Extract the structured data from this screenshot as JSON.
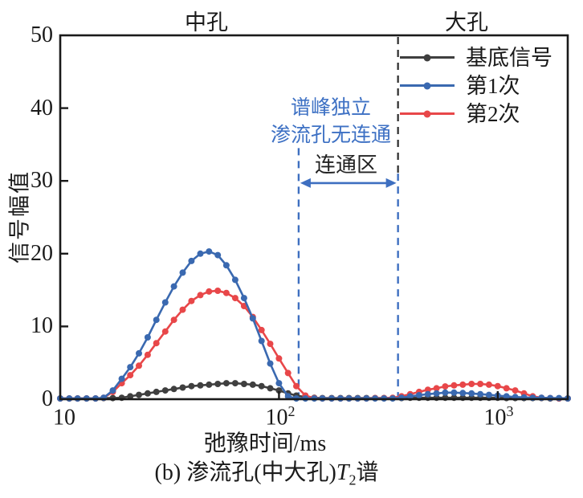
{
  "figure": {
    "caption_prefix": "(b) 渗流孔(中大孔)",
    "caption_T": "T",
    "caption_sub": "2",
    "caption_suffix": "谱"
  },
  "legend": {
    "items": [
      {
        "label": "基底信号",
        "color": "#3f3f3f"
      },
      {
        "label": "第1次",
        "color": "#3a69b0"
      },
      {
        "label": "第2次",
        "color": "#e84749"
      }
    ]
  },
  "chart_data": {
    "type": "line",
    "x_axis": {
      "label": "弛豫时间/ms",
      "scale": "log",
      "min_ms": 10,
      "max_ms": 2089,
      "ticks": [
        {
          "value": 10,
          "base": "10",
          "exp": ""
        },
        {
          "value": 100,
          "base": "10",
          "exp": "2"
        },
        {
          "value": 1000,
          "base": "10",
          "exp": "3"
        }
      ]
    },
    "y_axis": {
      "label": "信号幅值",
      "min": 0,
      "max": 50,
      "ticks": [
        0,
        10,
        20,
        30,
        40,
        50
      ],
      "tick_labels": [
        "0",
        "10",
        "20",
        "30",
        "40",
        "50"
      ]
    },
    "region_labels": {
      "mesopore": "中孔",
      "macropore": "大孔"
    },
    "pore_boundary_ms": 350,
    "colors": {
      "boundary_line": "#2b2b2b",
      "zone_line": "#3e6fc0",
      "note_text": "#3e71c4"
    },
    "connected_zone": {
      "start_ms": 123,
      "end_ms": 350,
      "arrow_value": 29.7,
      "label": "连通区",
      "note_line1": "谱峰独立",
      "note_line2": "渗流孔无连通"
    },
    "series": [
      {
        "id": "base",
        "name": "基底信号",
        "color": "#3f3f3f",
        "points": [
          [
            10,
            0.1
          ],
          [
            11,
            0.1
          ],
          [
            12,
            0.1
          ],
          [
            13.2,
            0.1
          ],
          [
            14.5,
            0.1
          ],
          [
            15.8,
            0.15
          ],
          [
            17.4,
            0.15
          ],
          [
            19.1,
            0.2
          ],
          [
            20.9,
            0.4
          ],
          [
            22.9,
            0.6
          ],
          [
            25.1,
            0.8
          ],
          [
            27.5,
            1.0
          ],
          [
            30.2,
            1.2
          ],
          [
            33.1,
            1.4
          ],
          [
            36.3,
            1.6
          ],
          [
            39.8,
            1.8
          ],
          [
            43.7,
            1.9
          ],
          [
            47.9,
            2.0
          ],
          [
            52.5,
            2.1
          ],
          [
            57.5,
            2.2
          ],
          [
            63.1,
            2.2
          ],
          [
            69.2,
            2.1
          ],
          [
            75.9,
            2.0
          ],
          [
            83.2,
            1.8
          ],
          [
            91.2,
            1.5
          ],
          [
            100,
            1.2
          ],
          [
            110,
            0.8
          ],
          [
            120,
            0.5
          ],
          [
            132,
            0.3
          ],
          [
            145,
            0.2
          ],
          [
            158,
            0.15
          ],
          [
            174,
            0.15
          ],
          [
            191,
            0.15
          ],
          [
            209,
            0.15
          ],
          [
            229,
            0.15
          ],
          [
            251,
            0.15
          ],
          [
            275,
            0.15
          ],
          [
            302,
            0.15
          ],
          [
            331,
            0.15
          ],
          [
            363,
            0.15
          ],
          [
            398,
            0.2
          ],
          [
            437,
            0.2
          ],
          [
            479,
            0.2
          ],
          [
            525,
            0.2
          ],
          [
            575,
            0.2
          ],
          [
            631,
            0.2
          ],
          [
            692,
            0.2
          ],
          [
            759,
            0.2
          ],
          [
            832,
            0.2
          ],
          [
            912,
            0.2
          ],
          [
            1000,
            0.2
          ],
          [
            1096,
            0.15
          ],
          [
            1202,
            0.15
          ],
          [
            1318,
            0.15
          ],
          [
            1445,
            0.15
          ],
          [
            1585,
            0.15
          ],
          [
            1738,
            0.1
          ],
          [
            1905,
            0.1
          ],
          [
            2089,
            0.1
          ]
        ]
      },
      {
        "id": "second",
        "name": "第2次",
        "color": "#e84749",
        "points": [
          [
            10,
            0.1
          ],
          [
            11,
            0.1
          ],
          [
            12,
            0.1
          ],
          [
            13.2,
            0.1
          ],
          [
            14.5,
            0.1
          ],
          [
            15.8,
            0.2
          ],
          [
            17.4,
            1.0
          ],
          [
            19.1,
            2.2
          ],
          [
            20.9,
            3.3
          ],
          [
            22.9,
            4.6
          ],
          [
            25.1,
            6.1
          ],
          [
            27.5,
            7.7
          ],
          [
            30.2,
            9.3
          ],
          [
            33.1,
            10.9
          ],
          [
            36.3,
            12.3
          ],
          [
            39.8,
            13.5
          ],
          [
            43.7,
            14.3
          ],
          [
            47.9,
            14.8
          ],
          [
            52.5,
            14.9
          ],
          [
            57.5,
            14.6
          ],
          [
            63.1,
            13.9
          ],
          [
            69.2,
            12.8
          ],
          [
            75.9,
            11.3
          ],
          [
            83.2,
            9.5
          ],
          [
            91.2,
            7.6
          ],
          [
            100,
            5.6
          ],
          [
            110,
            3.6
          ],
          [
            120,
            1.8
          ],
          [
            132,
            0.5
          ],
          [
            145,
            0.15
          ],
          [
            158,
            0.1
          ],
          [
            174,
            0.1
          ],
          [
            191,
            0.1
          ],
          [
            209,
            0.1
          ],
          [
            229,
            0.1
          ],
          [
            251,
            0.1
          ],
          [
            275,
            0.15
          ],
          [
            302,
            0.15
          ],
          [
            331,
            0.2
          ],
          [
            363,
            0.4
          ],
          [
            398,
            0.7
          ],
          [
            437,
            1.0
          ],
          [
            479,
            1.3
          ],
          [
            525,
            1.5
          ],
          [
            575,
            1.75
          ],
          [
            631,
            1.9
          ],
          [
            692,
            2.0
          ],
          [
            759,
            2.1
          ],
          [
            832,
            2.1
          ],
          [
            912,
            2.0
          ],
          [
            1000,
            1.8
          ],
          [
            1096,
            1.5
          ],
          [
            1202,
            1.2
          ],
          [
            1318,
            0.8
          ],
          [
            1445,
            0.4
          ],
          [
            1585,
            0.2
          ],
          [
            1738,
            0.15
          ],
          [
            1905,
            0.1
          ],
          [
            2089,
            0.1
          ]
        ]
      },
      {
        "id": "first",
        "name": "第1次",
        "color": "#3a69b0",
        "points": [
          [
            10,
            0.1
          ],
          [
            11,
            0.1
          ],
          [
            12,
            0.1
          ],
          [
            13.2,
            0.1
          ],
          [
            14.5,
            0.1
          ],
          [
            15.8,
            0.2
          ],
          [
            17.4,
            1.2
          ],
          [
            19.1,
            2.8
          ],
          [
            20.9,
            4.4
          ],
          [
            22.9,
            6.3
          ],
          [
            25.1,
            8.5
          ],
          [
            27.5,
            10.9
          ],
          [
            30.2,
            13.3
          ],
          [
            33.1,
            15.5
          ],
          [
            36.3,
            17.4
          ],
          [
            39.8,
            19.0
          ],
          [
            43.7,
            20.0
          ],
          [
            47.9,
            20.3
          ],
          [
            52.5,
            19.8
          ],
          [
            57.5,
            18.4
          ],
          [
            63.1,
            16.4
          ],
          [
            69.2,
            13.9
          ],
          [
            75.9,
            11.1
          ],
          [
            83.2,
            8.0
          ],
          [
            91.2,
            4.9
          ],
          [
            100,
            2.2
          ],
          [
            110,
            0.4
          ],
          [
            120,
            0.1
          ],
          [
            132,
            0.1
          ],
          [
            145,
            0.1
          ],
          [
            158,
            0.1
          ],
          [
            174,
            0.1
          ],
          [
            191,
            0.1
          ],
          [
            209,
            0.1
          ],
          [
            229,
            0.1
          ],
          [
            251,
            0.1
          ],
          [
            275,
            0.1
          ],
          [
            302,
            0.1
          ],
          [
            331,
            0.1
          ],
          [
            363,
            0.2
          ],
          [
            398,
            0.4
          ],
          [
            437,
            0.55
          ],
          [
            479,
            0.7
          ],
          [
            525,
            0.8
          ],
          [
            575,
            0.9
          ],
          [
            631,
            0.9
          ],
          [
            692,
            0.85
          ],
          [
            759,
            0.8
          ],
          [
            832,
            0.7
          ],
          [
            912,
            0.6
          ],
          [
            1000,
            0.5
          ],
          [
            1096,
            0.4
          ],
          [
            1202,
            0.3
          ],
          [
            1318,
            0.25
          ],
          [
            1445,
            0.2
          ],
          [
            1585,
            0.2
          ],
          [
            1738,
            0.15
          ],
          [
            1905,
            0.15
          ],
          [
            2089,
            0.1
          ]
        ]
      }
    ]
  }
}
